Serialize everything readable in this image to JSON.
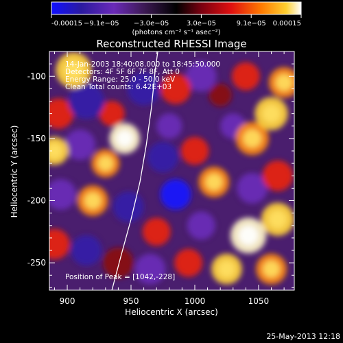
{
  "chart_data": {
    "type": "heatmap",
    "title": "Reconstructed RHESSI Image",
    "xlabel": "Heliocentric X (arcsec)",
    "ylabel": "Heliocentric Y (arcsec)",
    "xlim": [
      886,
      1078
    ],
    "ylim": [
      -272,
      -80
    ],
    "x_ticks": [
      900,
      950,
      1000,
      1050
    ],
    "y_ticks": [
      -100,
      -150,
      -200,
      -250
    ],
    "colorbar": {
      "ticks": [
        "-0.00015",
        "−9.1e−05",
        "−3.0e−05",
        "3.0e−05",
        "9.1e−05",
        "0.00015"
      ],
      "unit_label": "(photons cm⁻² s⁻¹ asec⁻²)",
      "range": [
        -0.00015,
        0.00015
      ]
    },
    "annotations": [
      "14-Jan-2003 18:40:08.000 to 18:45:50.000",
      "Detectors: 4F 5F 6F 7F 8F, Att 0",
      "Energy Range: 25.0 - 50.0 keV",
      "Clean      Total counts: 6.42E+03"
    ],
    "peak_label": "Position of Peak = [1042,-228]",
    "peak_position": [
      1042,
      -228
    ],
    "limb_curve": [
      [
        935,
        -272
      ],
      [
        942,
        -245
      ],
      [
        950,
        -215
      ],
      [
        957,
        -185
      ],
      [
        962,
        -155
      ],
      [
        966,
        -125
      ],
      [
        969,
        -95
      ],
      [
        971,
        -80
      ]
    ],
    "blobs": [
      {
        "x": 905,
        "y": -95,
        "v": 0.85,
        "r": 14
      },
      {
        "x": 893,
        "y": -130,
        "v": 0.55,
        "r": 12
      },
      {
        "x": 915,
        "y": -120,
        "v": -0.6,
        "r": 14
      },
      {
        "x": 935,
        "y": -130,
        "v": 0.5,
        "r": 10
      },
      {
        "x": 960,
        "y": -110,
        "v": -0.7,
        "r": 13
      },
      {
        "x": 985,
        "y": -110,
        "v": 0.55,
        "r": 12
      },
      {
        "x": 1005,
        "y": -100,
        "v": -0.5,
        "r": 12
      },
      {
        "x": 1040,
        "y": -100,
        "v": 0.6,
        "r": 11
      },
      {
        "x": 1070,
        "y": -105,
        "v": 0.7,
        "r": 12
      },
      {
        "x": 1060,
        "y": -130,
        "v": 0.8,
        "r": 13
      },
      {
        "x": 1045,
        "y": -150,
        "v": 0.75,
        "r": 13
      },
      {
        "x": 1030,
        "y": -140,
        "v": -0.4,
        "r": 10
      },
      {
        "x": 890,
        "y": -160,
        "v": 0.8,
        "r": 11
      },
      {
        "x": 910,
        "y": -155,
        "v": -0.5,
        "r": 12
      },
      {
        "x": 945,
        "y": -150,
        "v": 0.95,
        "r": 12
      },
      {
        "x": 930,
        "y": -170,
        "v": 0.65,
        "r": 11
      },
      {
        "x": 975,
        "y": -165,
        "v": -0.6,
        "r": 12
      },
      {
        "x": 1000,
        "y": -160,
        "v": 0.5,
        "r": 11
      },
      {
        "x": 1015,
        "y": -185,
        "v": 0.7,
        "r": 12
      },
      {
        "x": 1065,
        "y": -180,
        "v": 0.55,
        "r": 12
      },
      {
        "x": 1045,
        "y": -190,
        "v": -0.5,
        "r": 12
      },
      {
        "x": 895,
        "y": -195,
        "v": -0.55,
        "r": 12
      },
      {
        "x": 920,
        "y": -200,
        "v": 0.7,
        "r": 12
      },
      {
        "x": 948,
        "y": -205,
        "v": -0.6,
        "r": 12
      },
      {
        "x": 985,
        "y": -195,
        "v": -0.9,
        "r": 12
      },
      {
        "x": 970,
        "y": -225,
        "v": 0.55,
        "r": 11
      },
      {
        "x": 1005,
        "y": -220,
        "v": -0.5,
        "r": 11
      },
      {
        "x": 890,
        "y": -235,
        "v": 0.6,
        "r": 12
      },
      {
        "x": 915,
        "y": -240,
        "v": -0.6,
        "r": 12
      },
      {
        "x": 940,
        "y": -250,
        "v": 0.45,
        "r": 12
      },
      {
        "x": 1042,
        "y": -228,
        "v": 1.0,
        "r": 14
      },
      {
        "x": 1065,
        "y": -215,
        "v": 0.85,
        "r": 13
      },
      {
        "x": 1025,
        "y": -255,
        "v": 0.8,
        "r": 12
      },
      {
        "x": 1060,
        "y": -255,
        "v": 0.75,
        "r": 12
      },
      {
        "x": 995,
        "y": -250,
        "v": 0.6,
        "r": 11
      },
      {
        "x": 965,
        "y": -255,
        "v": -0.5,
        "r": 12
      },
      {
        "x": 980,
        "y": -140,
        "v": -0.5,
        "r": 10
      },
      {
        "x": 1020,
        "y": -115,
        "v": 0.45,
        "r": 9
      }
    ]
  },
  "footer": {
    "date": "25-May-2013 12:18"
  }
}
